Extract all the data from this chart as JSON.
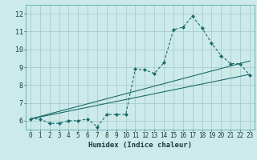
{
  "xlabel": "Humidex (Indice chaleur)",
  "bg_color": "#cdeaea",
  "grid_color": "#aacccc",
  "line_color": "#1a6b6b",
  "xlim": [
    -0.5,
    23.5
  ],
  "ylim": [
    5.5,
    12.5
  ],
  "xticks": [
    0,
    1,
    2,
    3,
    4,
    5,
    6,
    7,
    8,
    9,
    10,
    11,
    12,
    13,
    14,
    15,
    16,
    17,
    18,
    19,
    20,
    21,
    22,
    23
  ],
  "yticks": [
    6,
    7,
    8,
    9,
    10,
    11,
    12
  ],
  "series1_x": [
    0,
    1,
    2,
    3,
    4,
    5,
    6,
    7,
    8,
    9,
    10,
    11,
    12,
    13,
    14,
    15,
    16,
    17,
    18,
    19,
    20,
    21,
    22,
    23
  ],
  "series1_y": [
    6.1,
    6.1,
    5.85,
    5.85,
    6.0,
    6.0,
    6.1,
    5.65,
    6.35,
    6.35,
    6.35,
    8.9,
    8.85,
    8.65,
    9.25,
    11.1,
    11.25,
    11.85,
    11.2,
    10.35,
    9.65,
    9.2,
    9.2,
    8.55
  ],
  "series2_x": [
    0,
    23
  ],
  "series2_y": [
    6.1,
    8.6
  ],
  "series3_x": [
    0,
    23
  ],
  "series3_y": [
    6.1,
    9.35
  ]
}
